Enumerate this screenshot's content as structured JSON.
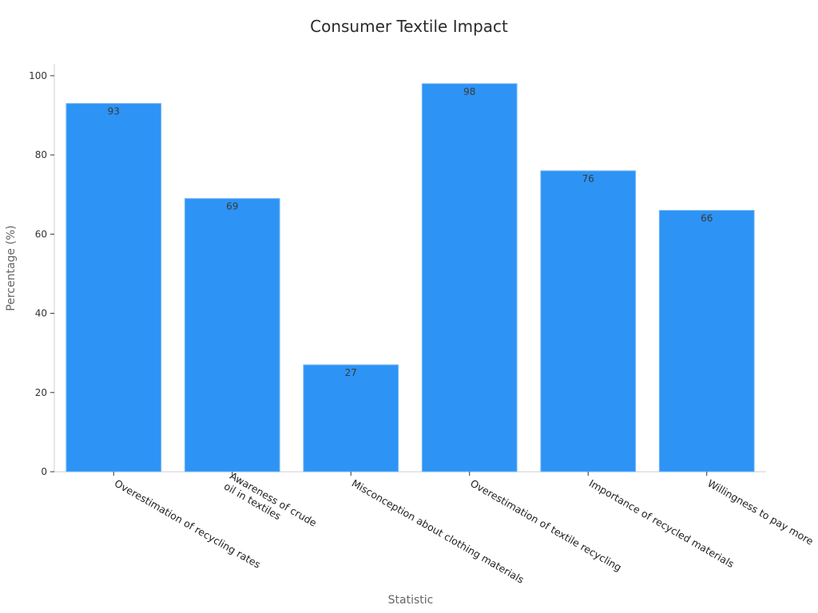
{
  "chart_data": {
    "type": "bar",
    "title": "Consumer Textile Impact",
    "xlabel": "Statistic",
    "ylabel": "Percentage (%)",
    "categories": [
      [
        "Overestimation of recycling rates"
      ],
      [
        "Awareness of crude",
        "oil in textiles"
      ],
      [
        "Misconception about clothing materials"
      ],
      [
        "Overestimation of textile recycling"
      ],
      [
        "Importance of recycled materials"
      ],
      [
        "Willingness to pay more"
      ]
    ],
    "values": [
      93,
      69,
      27,
      98,
      76,
      66
    ],
    "data_labels": [
      "93",
      "69",
      "27",
      "98",
      "76",
      "66"
    ],
    "ylim": [
      0,
      103
    ],
    "yticks": [
      0,
      20,
      40,
      60,
      80,
      100
    ],
    "ytick_labels": [
      "0",
      "20",
      "40",
      "60",
      "80",
      "100"
    ],
    "bar_color": "#2d93f5",
    "bar_edge_color": "#7fbcf7",
    "grid": false,
    "legend": "none"
  }
}
